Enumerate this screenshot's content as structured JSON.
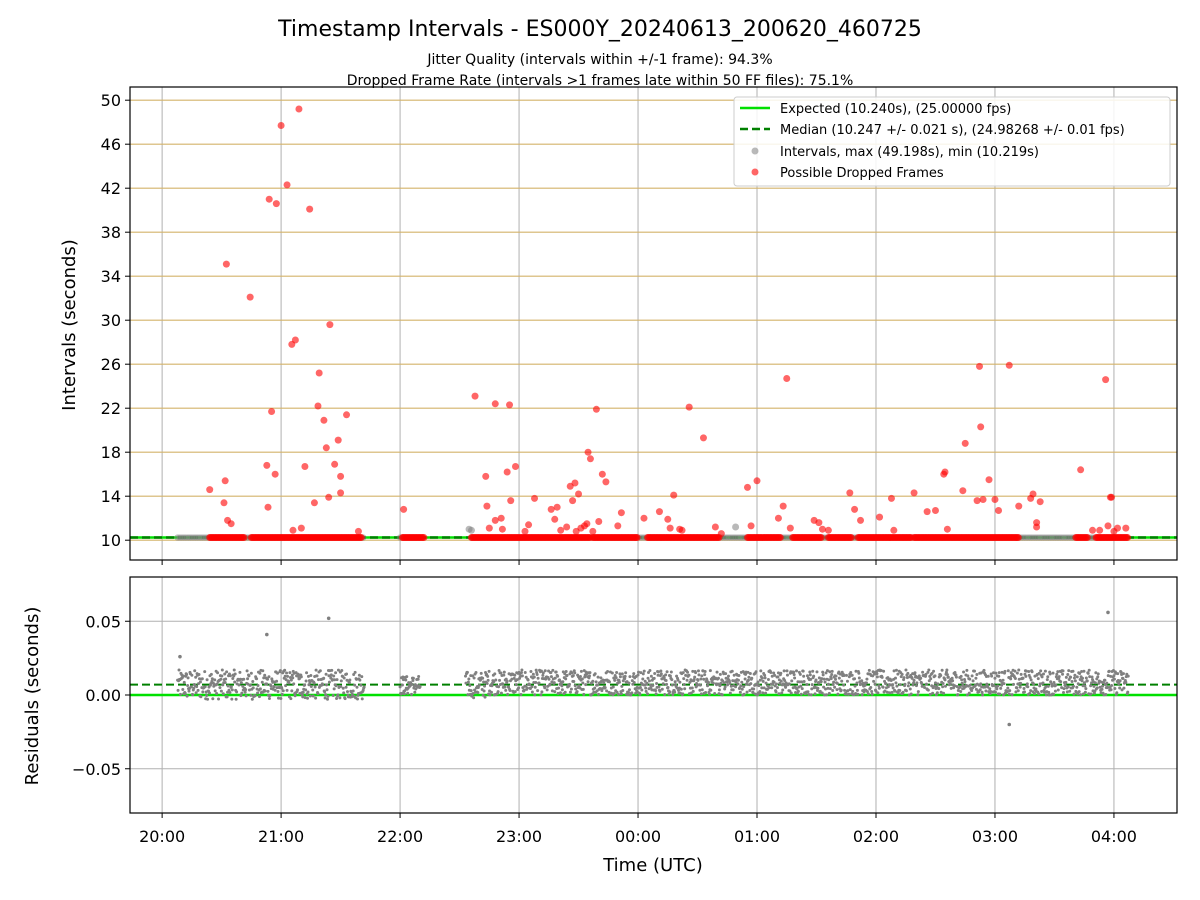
{
  "figure": {
    "title": "Timestamp Intervals - ES000Y_20240613_200620_460725",
    "subtitle_1": "Jitter Quality (intervals within +/-1 frame): 94.3%",
    "subtitle_2": "Dropped Frame Rate (intervals >1 frames late within 50 FF files): 75.1%"
  },
  "colors": {
    "expected": "#00e000",
    "median": "#008000",
    "dropped": "#ff0000",
    "intervals": "#808080",
    "hgrid_top": "#d4b36a",
    "grid": "#b0b0b0"
  },
  "chart_data": [
    {
      "type": "scatter",
      "name": "intervals",
      "xlabel": "",
      "ylabel": "Intervals (seconds)",
      "xunit": "hours since 20:00 UTC",
      "xlim": [
        -0.27,
        8.53
      ],
      "ylim": [
        8.2,
        51.2
      ],
      "yticks": [
        10,
        14,
        18,
        22,
        26,
        30,
        34,
        38,
        42,
        46,
        50
      ],
      "grid": "both",
      "legend_position": "top-right",
      "legend": [
        "Expected (10.240s), (25.00000 fps)",
        "Median (10.247 +/- 0.021 s), (24.98268 +/- 0.01 fps)",
        "Intervals, max (49.198s), min (10.219s)",
        "Possible Dropped Frames"
      ],
      "expected_line": 10.24,
      "median_line": 10.247,
      "baseline_intervals": 10.24,
      "baseline_ranges_hours": [
        [
          0.13,
          1.7
        ],
        [
          2.0,
          2.17
        ],
        [
          2.6,
          4.2
        ],
        [
          4.1,
          8.1
        ]
      ],
      "dropped_baseline_ranges_hours": [
        [
          0.4,
          0.7
        ],
        [
          0.75,
          1.68
        ],
        [
          2.02,
          2.2
        ],
        [
          2.6,
          3.6
        ],
        [
          3.62,
          4.0
        ],
        [
          4.08,
          4.68
        ],
        [
          4.92,
          5.2
        ],
        [
          5.3,
          5.55
        ],
        [
          5.6,
          5.8
        ],
        [
          5.85,
          6.3
        ],
        [
          6.32,
          7.2
        ],
        [
          7.68,
          7.78
        ],
        [
          7.85,
          8.12
        ]
      ],
      "dropped_points": [
        [
          0.4,
          14.6
        ],
        [
          0.53,
          15.4
        ],
        [
          0.52,
          13.4
        ],
        [
          0.55,
          11.8
        ],
        [
          0.58,
          11.5
        ],
        [
          0.54,
          35.1
        ],
        [
          0.74,
          32.1
        ],
        [
          0.88,
          16.8
        ],
        [
          0.89,
          13.0
        ],
        [
          0.9,
          41.0
        ],
        [
          0.92,
          21.7
        ],
        [
          0.95,
          16.0
        ],
        [
          0.96,
          40.6
        ],
        [
          1.0,
          47.7
        ],
        [
          1.05,
          42.3
        ],
        [
          1.09,
          27.8
        ],
        [
          1.12,
          28.2
        ],
        [
          1.1,
          10.9
        ],
        [
          1.17,
          11.1
        ],
        [
          1.15,
          49.2
        ],
        [
          1.2,
          16.7
        ],
        [
          1.24,
          40.1
        ],
        [
          1.28,
          13.4
        ],
        [
          1.31,
          22.2
        ],
        [
          1.32,
          25.2
        ],
        [
          1.36,
          20.9
        ],
        [
          1.38,
          18.4
        ],
        [
          1.4,
          13.9
        ],
        [
          1.41,
          29.6
        ],
        [
          1.45,
          16.9
        ],
        [
          1.48,
          19.1
        ],
        [
          1.5,
          14.3
        ],
        [
          1.5,
          15.8
        ],
        [
          1.55,
          21.4
        ],
        [
          1.65,
          10.8
        ],
        [
          2.03,
          12.8
        ],
        [
          2.63,
          23.1
        ],
        [
          2.72,
          15.8
        ],
        [
          2.73,
          13.1
        ],
        [
          2.75,
          11.1
        ],
        [
          2.8,
          11.8
        ],
        [
          2.8,
          22.4
        ],
        [
          2.85,
          12.0
        ],
        [
          2.86,
          11.0
        ],
        [
          2.9,
          16.2
        ],
        [
          2.92,
          22.3
        ],
        [
          2.93,
          13.6
        ],
        [
          2.97,
          16.7
        ],
        [
          3.05,
          10.8
        ],
        [
          3.08,
          11.4
        ],
        [
          3.13,
          13.8
        ],
        [
          3.27,
          12.8
        ],
        [
          3.3,
          11.9
        ],
        [
          3.32,
          13.0
        ],
        [
          3.35,
          10.9
        ],
        [
          3.4,
          11.2
        ],
        [
          3.43,
          14.9
        ],
        [
          3.45,
          13.6
        ],
        [
          3.47,
          15.2
        ],
        [
          3.48,
          10.8
        ],
        [
          3.5,
          14.2
        ],
        [
          3.52,
          11.1
        ],
        [
          3.55,
          11.3
        ],
        [
          3.57,
          11.5
        ],
        [
          3.58,
          18.0
        ],
        [
          3.6,
          17.4
        ],
        [
          3.62,
          10.8
        ],
        [
          3.65,
          21.9
        ],
        [
          3.67,
          11.7
        ],
        [
          3.7,
          16.0
        ],
        [
          3.73,
          15.3
        ],
        [
          3.83,
          11.3
        ],
        [
          3.86,
          12.5
        ],
        [
          4.05,
          12.0
        ],
        [
          4.18,
          12.6
        ],
        [
          4.25,
          11.9
        ],
        [
          4.27,
          11.1
        ],
        [
          4.3,
          14.1
        ],
        [
          4.35,
          11.0
        ],
        [
          4.37,
          10.9
        ],
        [
          4.43,
          22.1
        ],
        [
          4.55,
          19.3
        ],
        [
          4.65,
          11.2
        ],
        [
          4.7,
          10.6
        ],
        [
          4.92,
          14.8
        ],
        [
          4.95,
          11.3
        ],
        [
          5.0,
          15.4
        ],
        [
          5.18,
          12.0
        ],
        [
          5.22,
          13.1
        ],
        [
          5.25,
          24.7
        ],
        [
          5.28,
          11.1
        ],
        [
          5.48,
          11.8
        ],
        [
          5.52,
          11.6
        ],
        [
          5.55,
          11.0
        ],
        [
          5.6,
          10.9
        ],
        [
          5.78,
          14.3
        ],
        [
          5.82,
          12.8
        ],
        [
          5.87,
          11.8
        ],
        [
          6.03,
          12.1
        ],
        [
          6.13,
          13.8
        ],
        [
          6.15,
          10.9
        ],
        [
          6.32,
          14.3
        ],
        [
          6.43,
          12.6
        ],
        [
          6.5,
          12.7
        ],
        [
          6.57,
          16.0
        ],
        [
          6.58,
          16.2
        ],
        [
          6.6,
          11.0
        ],
        [
          6.73,
          14.5
        ],
        [
          6.75,
          18.8
        ],
        [
          6.85,
          13.6
        ],
        [
          6.87,
          25.8
        ],
        [
          6.88,
          20.3
        ],
        [
          6.9,
          13.7
        ],
        [
          6.95,
          15.5
        ],
        [
          7.0,
          13.7
        ],
        [
          7.03,
          12.7
        ],
        [
          7.12,
          25.9
        ],
        [
          7.2,
          13.1
        ],
        [
          7.3,
          13.8
        ],
        [
          7.32,
          14.2
        ],
        [
          7.35,
          11.2
        ],
        [
          7.35,
          11.6
        ],
        [
          7.38,
          13.5
        ],
        [
          7.72,
          16.4
        ],
        [
          7.82,
          10.9
        ],
        [
          7.88,
          10.9
        ],
        [
          7.93,
          24.6
        ],
        [
          7.95,
          11.3
        ],
        [
          7.97,
          13.9
        ],
        [
          7.98,
          13.9
        ],
        [
          8.0,
          10.8
        ],
        [
          8.03,
          11.1
        ],
        [
          8.1,
          11.1
        ]
      ],
      "grey_points": [
        [
          2.58,
          11.0
        ],
        [
          2.6,
          10.9
        ],
        [
          4.82,
          11.2
        ]
      ]
    },
    {
      "type": "scatter",
      "name": "residuals",
      "xlabel": "Time (UTC)",
      "ylabel": "Residuals (seconds)",
      "xlim": [
        -0.27,
        8.53
      ],
      "ylim": [
        -0.08,
        0.08
      ],
      "yticks": [
        0.05,
        0.0,
        -0.05
      ],
      "ytick_labels": [
        "0.05",
        "0.00",
        "−0.05"
      ],
      "xticks": [
        0,
        1,
        2,
        3,
        4,
        5,
        6,
        7,
        8
      ],
      "xtick_labels": [
        "20:00",
        "21:00",
        "22:00",
        "23:00",
        "00:00",
        "01:00",
        "02:00",
        "03:00",
        "04:00"
      ],
      "grid": "both",
      "expected_line": 0.0,
      "median_line": 0.007,
      "outliers": [
        [
          0.15,
          0.026
        ],
        [
          0.88,
          0.041
        ],
        [
          1.4,
          0.052
        ],
        [
          7.12,
          -0.02
        ],
        [
          7.95,
          0.056
        ]
      ],
      "bands": [
        {
          "from": 0.13,
          "to": 1.7,
          "low": -0.003,
          "high": 0.017
        },
        {
          "from": 2.0,
          "to": 2.17,
          "low": 0.0,
          "high": 0.013
        },
        {
          "from": 2.55,
          "to": 2.72,
          "low": -0.002,
          "high": 0.016
        },
        {
          "from": 2.72,
          "to": 8.12,
          "low": 0.0,
          "high": 0.017
        }
      ]
    }
  ]
}
